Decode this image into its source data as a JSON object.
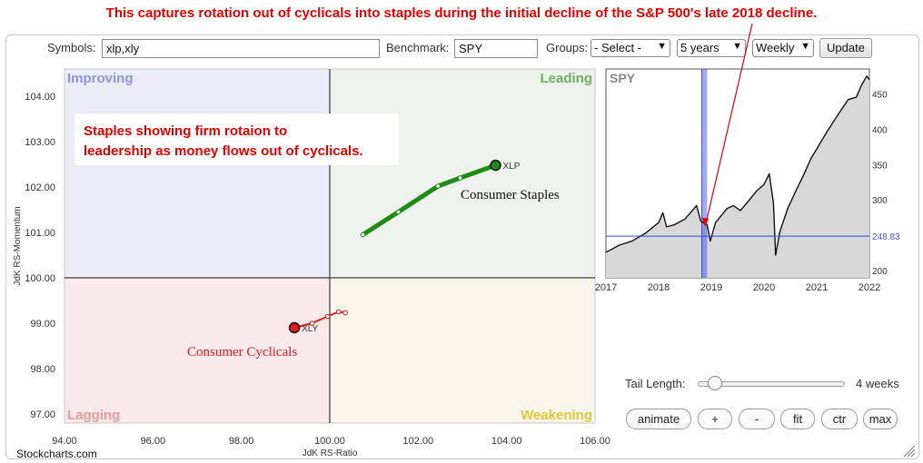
{
  "headline": "This captures rotation out of cyclicals into staples during the initial decline of the S&P 500's late 2018 decline.",
  "toolbar": {
    "symbols_label": "Symbols:",
    "symbols_value": "xlp,xly",
    "benchmark_label": "Benchmark:",
    "benchmark_value": "SPY",
    "groups_label": "Groups:",
    "groups_value": "- Select -",
    "period_value": "5 years",
    "frequency_value": "Weekly",
    "update_label": "Update"
  },
  "colors": {
    "improving": "#ececf7",
    "leading": "#edf3ec",
    "lagging": "#f9e9ea",
    "weakening": "#f9f6ec",
    "xlp_line": "#1f8a16",
    "xly_line": "#e21a1a",
    "annotation": "#e30000",
    "price_line": "#111111",
    "price_fill": "#d8d8d8",
    "highlight": "#3344dd"
  },
  "chart_data": [
    {
      "type": "scatter",
      "subtype": "relative-rotation-graph",
      "xlabel": "JdK RS-Ratio",
      "ylabel": "JdK RS-Momentum",
      "xlim": [
        94,
        106
      ],
      "ylim": [
        96.8,
        104.6
      ],
      "xticks": [
        "94.00",
        "96.00",
        "98.00",
        "100.00",
        "102.00",
        "104.00",
        "106.00"
      ],
      "yticks": [
        "97.00",
        "98.00",
        "99.00",
        "100.00",
        "101.00",
        "102.00",
        "103.00",
        "104.00"
      ],
      "quadrants": [
        "Improving",
        "Leading",
        "Lagging",
        "Weakening"
      ],
      "series": [
        {
          "name": "XLP",
          "label": "XLP",
          "x": [
            100.75,
            101.55,
            102.45,
            102.95,
            103.75
          ],
          "y": [
            100.95,
            101.45,
            102.02,
            102.2,
            102.48
          ]
        },
        {
          "name": "XLY",
          "label": "XLY",
          "x": [
            100.35,
            100.2,
            99.95,
            99.6,
            99.2
          ],
          "y": [
            99.23,
            99.25,
            99.15,
            99.0,
            98.9
          ]
        }
      ],
      "annotations": [
        {
          "text_line1": "Staples showing firm rotaion to",
          "text_line2": "leadership as money flows out of cyclicals."
        },
        {
          "text": "Consumer Staples"
        },
        {
          "text": "Consumer Cyclicals"
        }
      ]
    },
    {
      "type": "area",
      "title": "SPY",
      "xlim": [
        2017,
        2022
      ],
      "ylim": [
        190,
        485
      ],
      "xticks": [
        "2017",
        "2018",
        "2019",
        "2020",
        "2021",
        "2022"
      ],
      "yticks": [
        "200",
        "250",
        "300",
        "350",
        "400",
        "450"
      ],
      "current_value": "248.83",
      "highlight_start": 2018.82,
      "highlight_end": 2018.92,
      "x": [
        2017.0,
        2017.25,
        2017.5,
        2017.75,
        2018.0,
        2018.08,
        2018.15,
        2018.3,
        2018.5,
        2018.72,
        2018.8,
        2018.92,
        2018.98,
        2019.08,
        2019.3,
        2019.42,
        2019.55,
        2019.7,
        2019.85,
        2020.0,
        2020.1,
        2020.18,
        2020.22,
        2020.3,
        2020.45,
        2020.6,
        2020.75,
        2020.9,
        2021.0,
        2021.2,
        2021.4,
        2021.6,
        2021.75,
        2021.85,
        2021.95,
        2022.0
      ],
      "y": [
        226,
        236,
        242,
        253,
        268,
        282,
        262,
        265,
        273,
        292,
        270,
        265,
        242,
        268,
        288,
        292,
        285,
        298,
        312,
        322,
        337,
        295,
        222,
        255,
        288,
        312,
        335,
        360,
        372,
        397,
        420,
        442,
        445,
        462,
        475,
        470
      ]
    }
  ],
  "slider": {
    "label": "Tail Length:",
    "value": "4 weeks",
    "fraction": 0.08
  },
  "buttons": [
    "animate",
    "+",
    "-",
    "fit",
    "ctr",
    "max"
  ],
  "footer": "Stockcharts.com"
}
